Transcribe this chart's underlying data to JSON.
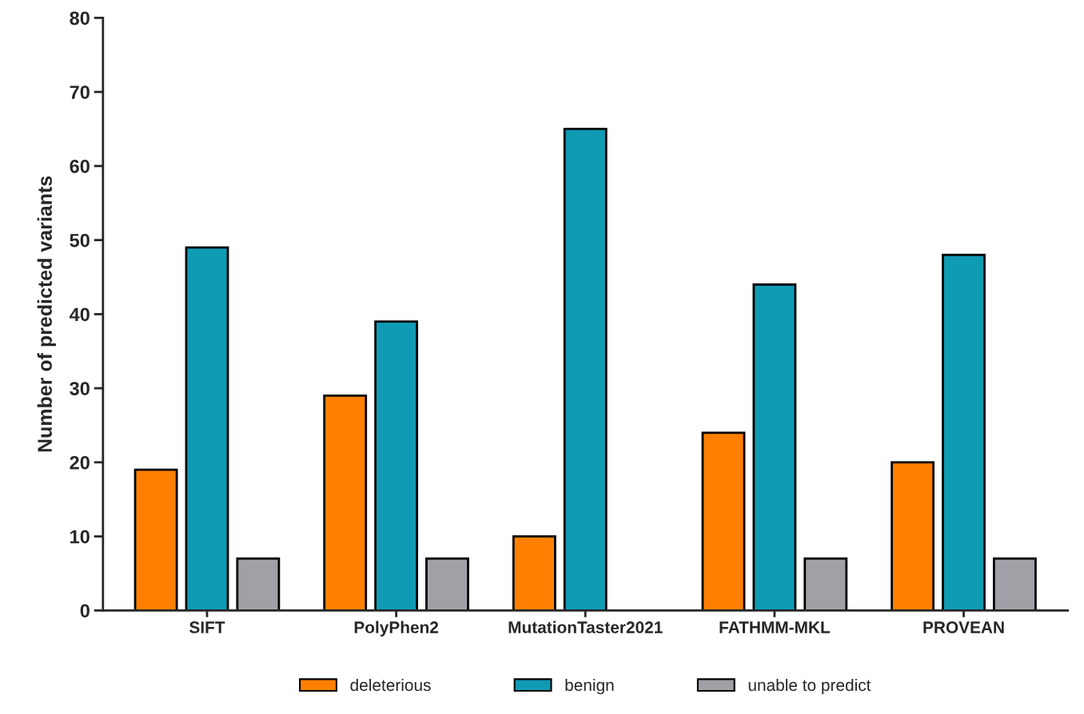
{
  "chart_data": {
    "type": "bar",
    "ylabel": "Number of predicted variants",
    "categories": [
      "SIFT",
      "PolyPhen2",
      "MutationTaster2021",
      "FATHMM-MKL",
      "PROVEAN"
    ],
    "series": [
      {
        "name": "deleterious",
        "color": "#ff8000",
        "values": [
          19,
          29,
          10,
          24,
          20
        ]
      },
      {
        "name": "benign",
        "color": "#109bb5",
        "values": [
          49,
          39,
          65,
          44,
          48
        ]
      },
      {
        "name": "unable to predict",
        "color": "#a0a0a6",
        "values": [
          7,
          7,
          null,
          7,
          7
        ]
      }
    ],
    "ylim": [
      0,
      80
    ],
    "yticks": [
      0,
      10,
      20,
      30,
      40,
      50,
      60,
      70,
      80
    ],
    "grid": false,
    "legend": "bottom"
  }
}
